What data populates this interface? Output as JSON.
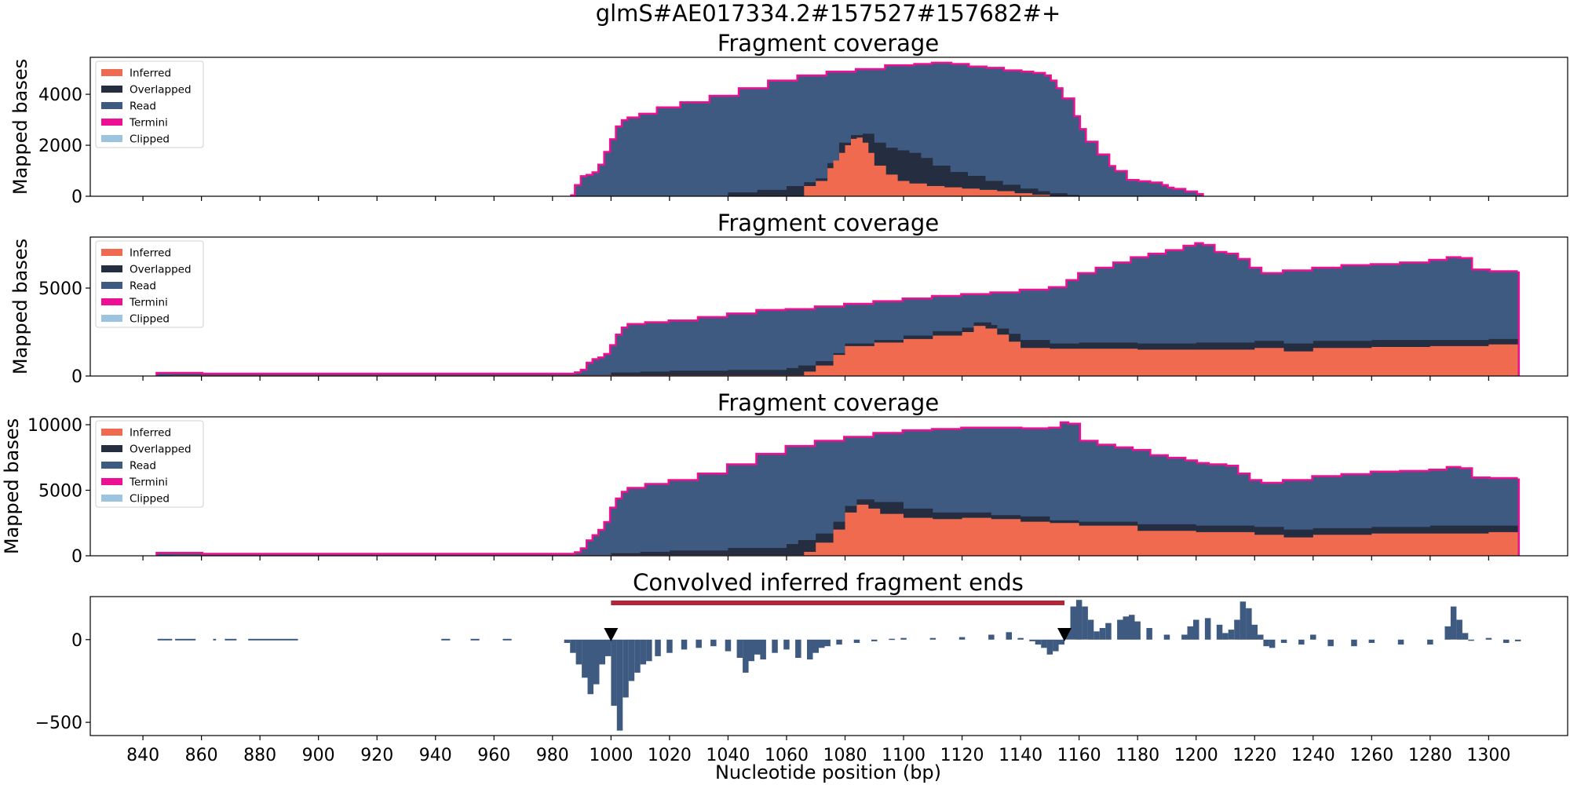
{
  "suptitle": "glmS#AE017334.2#157527#157682#+",
  "colors": {
    "Inferred": "#ef6a4f",
    "Overlapped": "#252d40",
    "Read": "#3e5a80",
    "Termini": "#ee1094",
    "Clipped": "#9cc4de",
    "bar": "#b22638"
  },
  "chart_data": [
    {
      "type": "area",
      "title": "Fragment coverage",
      "ylabel": "Mapped bases",
      "xlim": [
        822,
        1327
      ],
      "ylim": [
        0,
        5450
      ],
      "yticks": [
        0,
        2000,
        4000
      ],
      "legend": {
        "position": "top-left",
        "entries": [
          "Inferred",
          "Overlapped",
          "Read",
          "Termini",
          "Clipped"
        ]
      },
      "series": [
        {
          "name": "Read",
          "x": [
            986,
            988,
            990,
            992,
            994,
            996,
            998,
            1000,
            1002,
            1004,
            1006,
            1010,
            1016,
            1024,
            1034,
            1044,
            1054,
            1064,
            1074,
            1084,
            1094,
            1104,
            1110,
            1116,
            1122,
            1128,
            1134,
            1140,
            1144,
            1148,
            1150,
            1152,
            1154,
            1158,
            1160,
            1162,
            1166,
            1170,
            1172,
            1176,
            1180,
            1184,
            1188,
            1190,
            1192,
            1196,
            1200,
            1202
          ],
          "y": [
            0,
            400,
            750,
            800,
            900,
            1200,
            1700,
            2200,
            2700,
            2950,
            3050,
            3200,
            3450,
            3650,
            3900,
            4200,
            4500,
            4700,
            4850,
            4950,
            5100,
            5150,
            5200,
            5150,
            5050,
            5000,
            4900,
            4850,
            4800,
            4700,
            4500,
            4200,
            3800,
            3100,
            2600,
            2100,
            1600,
            1150,
            950,
            600,
            550,
            500,
            400,
            300,
            250,
            150,
            50,
            0
          ]
        },
        {
          "name": "Overlapped",
          "x": [
            1030,
            1040,
            1050,
            1060,
            1066,
            1070,
            1074,
            1078,
            1082,
            1086,
            1090,
            1094,
            1098,
            1102,
            1106,
            1110,
            1116,
            1122,
            1128,
            1134,
            1140,
            1146,
            1150,
            1156,
            1160
          ],
          "y": [
            0,
            150,
            250,
            400,
            550,
            700,
            1300,
            2100,
            2400,
            2450,
            2100,
            1900,
            1800,
            1700,
            1500,
            1200,
            950,
            800,
            600,
            450,
            300,
            200,
            120,
            50,
            0
          ]
        },
        {
          "name": "Inferred",
          "x": [
            1060,
            1066,
            1070,
            1074,
            1076,
            1078,
            1080,
            1082,
            1084,
            1086,
            1088,
            1090,
            1094,
            1098,
            1102,
            1108,
            1114,
            1120,
            1126,
            1132,
            1138,
            1144,
            1150
          ],
          "y": [
            0,
            400,
            600,
            1100,
            1400,
            1700,
            2000,
            2250,
            2300,
            2100,
            1700,
            1200,
            850,
            600,
            500,
            400,
            350,
            300,
            250,
            200,
            120,
            60,
            0
          ]
        }
      ]
    },
    {
      "type": "area",
      "title": "Fragment coverage",
      "ylabel": "Mapped bases",
      "xlim": [
        822,
        1327
      ],
      "ylim": [
        0,
        7900
      ],
      "yticks": [
        0,
        5000
      ],
      "legend": {
        "position": "top-left",
        "entries": [
          "Inferred",
          "Overlapped",
          "Read",
          "Termini",
          "Clipped"
        ]
      },
      "series": [
        {
          "name": "Read",
          "x": [
            845,
            855,
            860,
            986,
            988,
            990,
            992,
            994,
            996,
            998,
            1000,
            1002,
            1004,
            1006,
            1012,
            1020,
            1030,
            1040,
            1050,
            1060,
            1070,
            1080,
            1090,
            1100,
            1110,
            1120,
            1130,
            1140,
            1150,
            1156,
            1160,
            1166,
            1172,
            1178,
            1184,
            1190,
            1196,
            1200,
            1202,
            1206,
            1210,
            1214,
            1218,
            1222,
            1230,
            1240,
            1250,
            1260,
            1270,
            1280,
            1286,
            1290,
            1294,
            1300,
            1310
          ],
          "y": [
            120,
            120,
            80,
            80,
            150,
            300,
            700,
            900,
            1000,
            1200,
            1700,
            2300,
            2700,
            2900,
            3000,
            3100,
            3300,
            3500,
            3700,
            3750,
            3900,
            4050,
            4200,
            4350,
            4500,
            4600,
            4700,
            4850,
            5000,
            5400,
            5800,
            6100,
            6400,
            6700,
            6900,
            7100,
            7350,
            7500,
            7400,
            7000,
            6900,
            6600,
            6100,
            5800,
            5950,
            6100,
            6250,
            6300,
            6400,
            6550,
            6700,
            6650,
            6000,
            5900,
            5950
          ]
        },
        {
          "name": "Overlapped",
          "x": [
            850,
            986,
            1000,
            1010,
            1020,
            1040,
            1060,
            1064,
            1070,
            1076,
            1080,
            1090,
            1100,
            1110,
            1120,
            1124,
            1130,
            1132,
            1136,
            1140,
            1150,
            1160,
            1180,
            1200,
            1220,
            1230,
            1240,
            1260,
            1280,
            1300,
            1310
          ],
          "y": [
            60,
            60,
            200,
            250,
            300,
            350,
            450,
            600,
            850,
            1300,
            1850,
            2050,
            2300,
            2550,
            2750,
            3050,
            2900,
            2700,
            2400,
            2050,
            1850,
            1900,
            1850,
            1900,
            2000,
            1850,
            2000,
            2050,
            2050,
            2100,
            2050
          ]
        },
        {
          "name": "Inferred",
          "x": [
            850,
            1060,
            1066,
            1070,
            1076,
            1080,
            1090,
            1100,
            1110,
            1120,
            1124,
            1128,
            1132,
            1136,
            1140,
            1150,
            1160,
            1180,
            1200,
            1220,
            1230,
            1240,
            1260,
            1280,
            1300,
            1310
          ],
          "y": [
            40,
            40,
            250,
            600,
            1200,
            1700,
            1900,
            2100,
            2300,
            2500,
            2850,
            2700,
            2350,
            1950,
            1600,
            1550,
            1550,
            1500,
            1500,
            1600,
            1400,
            1600,
            1650,
            1700,
            1800,
            1700
          ]
        }
      ]
    },
    {
      "type": "area",
      "title": "Fragment coverage",
      "ylabel": "Mapped bases",
      "xlim": [
        822,
        1327
      ],
      "ylim": [
        0,
        10600
      ],
      "yticks": [
        0,
        5000,
        10000
      ],
      "legend": {
        "position": "top-left",
        "entries": [
          "Inferred",
          "Overlapped",
          "Read",
          "Termini",
          "Clipped"
        ]
      },
      "series": [
        {
          "name": "Read",
          "x": [
            845,
            855,
            860,
            986,
            988,
            990,
            992,
            994,
            996,
            998,
            1000,
            1002,
            1004,
            1006,
            1012,
            1020,
            1030,
            1040,
            1050,
            1060,
            1070,
            1080,
            1090,
            1100,
            1110,
            1120,
            1130,
            1140,
            1150,
            1154,
            1156,
            1160,
            1166,
            1172,
            1178,
            1184,
            1190,
            1196,
            1200,
            1204,
            1210,
            1214,
            1218,
            1222,
            1230,
            1240,
            1250,
            1260,
            1270,
            1280,
            1286,
            1290,
            1294,
            1300,
            1310
          ],
          "y": [
            150,
            150,
            80,
            80,
            200,
            500,
            1100,
            1500,
            1900,
            2500,
            3600,
            4300,
            4800,
            5100,
            5400,
            5700,
            6200,
            6900,
            7700,
            8300,
            8700,
            9000,
            9300,
            9500,
            9600,
            9700,
            9700,
            9650,
            9700,
            10100,
            10000,
            8700,
            8400,
            8200,
            8000,
            7600,
            7400,
            7200,
            7000,
            6900,
            6800,
            6200,
            5700,
            5500,
            5700,
            6000,
            6150,
            6350,
            6400,
            6500,
            6700,
            6600,
            5900,
            5850,
            5900
          ]
        },
        {
          "name": "Overlapped",
          "x": [
            850,
            986,
            1000,
            1010,
            1020,
            1040,
            1060,
            1064,
            1070,
            1076,
            1080,
            1084,
            1090,
            1100,
            1110,
            1120,
            1130,
            1140,
            1150,
            1160,
            1180,
            1200,
            1220,
            1230,
            1240,
            1260,
            1280,
            1300,
            1310
          ],
          "y": [
            50,
            50,
            200,
            300,
            400,
            600,
            900,
            1200,
            1700,
            2600,
            3800,
            4300,
            4100,
            3600,
            3300,
            3300,
            3100,
            3000,
            2700,
            2600,
            2400,
            2300,
            2200,
            2000,
            2100,
            2200,
            2300,
            2300,
            2300
          ]
        },
        {
          "name": "Inferred",
          "x": [
            850,
            1060,
            1066,
            1070,
            1076,
            1080,
            1084,
            1088,
            1092,
            1100,
            1110,
            1120,
            1130,
            1140,
            1150,
            1160,
            1180,
            1200,
            1220,
            1230,
            1240,
            1260,
            1280,
            1300,
            1310
          ],
          "y": [
            40,
            40,
            300,
            1000,
            2000,
            3300,
            3900,
            3600,
            3200,
            2900,
            2800,
            2900,
            2800,
            2600,
            2500,
            2300,
            1900,
            1800,
            1600,
            1400,
            1600,
            1700,
            1700,
            1800,
            1700
          ]
        }
      ]
    },
    {
      "type": "bar",
      "title": "Convolved inferred fragment ends",
      "ylabel": "",
      "xlim": [
        822,
        1327
      ],
      "ylim": [
        -580,
        260
      ],
      "yticks": [
        -500,
        0
      ],
      "xticks": [
        840,
        860,
        880,
        900,
        920,
        940,
        960,
        980,
        1000,
        1020,
        1040,
        1060,
        1080,
        1100,
        1120,
        1140,
        1160,
        1180,
        1200,
        1220,
        1240,
        1260,
        1280,
        1300
      ],
      "xlabel": "Nucleotide position (bp)",
      "markers": [
        1000,
        1155
      ],
      "interval": [
        1000,
        1155
      ],
      "series": [
        {
          "name": "",
          "x": [
            985,
            987,
            989,
            991,
            993,
            995,
            997,
            999,
            1001,
            1003,
            1005,
            1007,
            1009,
            1011,
            1013,
            1016,
            1020,
            1025,
            1030,
            1035,
            1040,
            1044,
            1046,
            1048,
            1050,
            1052,
            1056,
            1060,
            1064,
            1068,
            1070,
            1072,
            1074,
            1078,
            1084,
            1090,
            1096,
            1100,
            1110,
            1120,
            1130,
            1136,
            1140,
            1144,
            1146,
            1148,
            1150,
            1152,
            1154,
            1156,
            1158,
            1160,
            1162,
            1164,
            1166,
            1168,
            1170,
            1174,
            1176,
            1178,
            1180,
            1184,
            1190,
            1196,
            1198,
            1200,
            1204,
            1208,
            1210,
            1212,
            1214,
            1216,
            1218,
            1220,
            1222,
            1224,
            1226,
            1230,
            1236,
            1240,
            1246,
            1254,
            1260,
            1270,
            1280,
            1286,
            1288,
            1290,
            1292,
            1294,
            1300,
            1306,
            1310
          ],
          "y": [
            -20,
            -80,
            -150,
            -230,
            -330,
            -270,
            -150,
            -100,
            -400,
            -550,
            -350,
            -250,
            -200,
            -150,
            -130,
            -100,
            -80,
            -60,
            -50,
            -40,
            -70,
            -110,
            -200,
            -130,
            -90,
            -120,
            -80,
            -60,
            -110,
            -120,
            -80,
            -50,
            -40,
            -30,
            -20,
            -10,
            5,
            10,
            10,
            15,
            30,
            45,
            10,
            -10,
            -30,
            -50,
            -90,
            -70,
            -30,
            60,
            200,
            240,
            200,
            120,
            50,
            70,
            100,
            120,
            140,
            150,
            110,
            70,
            30,
            30,
            80,
            120,
            130,
            90,
            40,
            60,
            120,
            230,
            190,
            90,
            30,
            -40,
            -50,
            -20,
            -30,
            30,
            -40,
            -40,
            -20,
            -30,
            -30,
            80,
            200,
            120,
            40,
            0,
            10,
            -20,
            -10
          ]
        }
      ]
    }
  ]
}
